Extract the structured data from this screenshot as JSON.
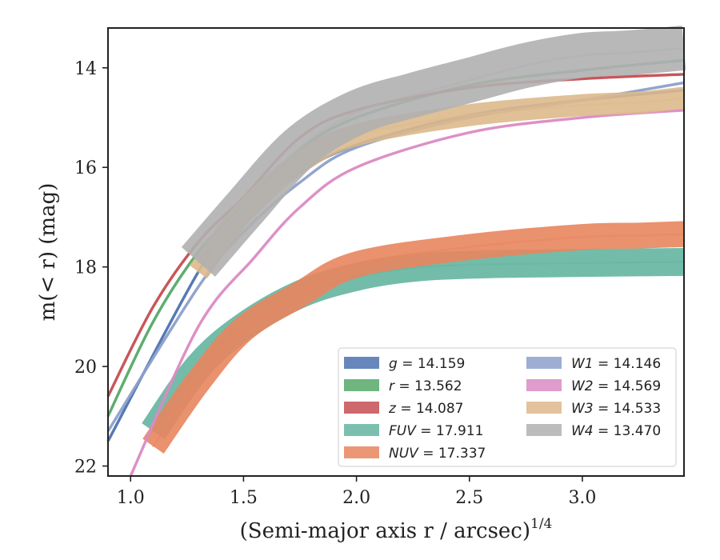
{
  "chart_data": {
    "type": "line",
    "title": "",
    "xlabel": "(Semi-major axis r / arcsec)",
    "xlabel_superscript": "1/4",
    "ylabel": "m(< r) (mag)",
    "xlim": [
      0.9,
      3.45
    ],
    "ylim": [
      22.2,
      13.2
    ],
    "y_inverted": true,
    "grid": false,
    "legend_placement": "lower-right",
    "xticks": [
      {
        "value": 1.0,
        "label": "1.0"
      },
      {
        "value": 1.5,
        "label": "1.5"
      },
      {
        "value": 2.0,
        "label": "2.0"
      },
      {
        "value": 2.5,
        "label": "2.5"
      },
      {
        "value": 3.0,
        "label": "3.0"
      }
    ],
    "yticks": [
      {
        "value": 14,
        "label": "14"
      },
      {
        "value": 16,
        "label": "16"
      },
      {
        "value": 18,
        "label": "18"
      },
      {
        "value": 20,
        "label": "20"
      },
      {
        "value": 22,
        "label": "22"
      }
    ],
    "series": [
      {
        "name": "g",
        "legend_value": "14.159",
        "color": "#4c72b0",
        "thin": true,
        "bandwidth": 0.07,
        "x": [
          0.9,
          1.3,
          1.5,
          1.75,
          2.0,
          2.5,
          3.0,
          3.45
        ],
        "y": [
          21.5,
          18.1,
          16.9,
          16.1,
          15.55,
          14.95,
          14.65,
          14.45
        ]
      },
      {
        "name": "r",
        "legend_value": "13.562",
        "color": "#55a868",
        "thin": true,
        "bandwidth": 0.07,
        "x": [
          0.9,
          1.1,
          1.3,
          1.5,
          1.75,
          2.0,
          2.5,
          3.0,
          3.45
        ],
        "y": [
          21.0,
          19.1,
          17.7,
          16.75,
          15.65,
          15.0,
          14.35,
          14.05,
          13.85
        ]
      },
      {
        "name": "z",
        "legend_value": "14.087",
        "color": "#c44e52",
        "thin": true,
        "bandwidth": 0.07,
        "x": [
          0.9,
          1.1,
          1.3,
          1.5,
          1.75,
          2.0,
          2.5,
          3.0,
          3.45
        ],
        "y": [
          20.6,
          18.8,
          17.5,
          16.6,
          15.4,
          14.85,
          14.4,
          14.22,
          14.13
        ]
      },
      {
        "name": "FUV",
        "legend_value": "17.911",
        "color": "#64b5a0",
        "thin": false,
        "bandwidth": 0.28,
        "x": [
          1.1,
          1.3,
          1.5,
          1.75,
          2.0,
          2.25,
          2.55,
          3.0,
          3.45
        ],
        "y": [
          21.3,
          20.0,
          19.2,
          18.55,
          18.2,
          18.02,
          17.95,
          17.92,
          17.9
        ]
      },
      {
        "name": "NUV",
        "legend_value": "17.337",
        "color": "#e8855e",
        "thin": false,
        "bandwidth": 0.26,
        "x": [
          1.1,
          1.3,
          1.5,
          1.75,
          2.0,
          2.5,
          3.0,
          3.25,
          3.45
        ],
        "y": [
          21.6,
          20.3,
          19.25,
          18.55,
          17.95,
          17.6,
          17.4,
          17.37,
          17.34
        ]
      },
      {
        "name": "W1",
        "legend_value": "14.146",
        "color": "#8da0cb",
        "thin": true,
        "bandwidth": 0.08,
        "x": [
          0.9,
          1.3,
          1.5,
          1.75,
          2.0,
          2.5,
          3.0,
          3.45
        ],
        "y": [
          21.3,
          18.4,
          17.3,
          16.3,
          15.6,
          15.0,
          14.65,
          14.3
        ]
      },
      {
        "name": "W2",
        "legend_value": "14.569",
        "color": "#da8bc3",
        "thin": true,
        "bandwidth": 0.08,
        "x": [
          1.0,
          1.3,
          1.55,
          1.75,
          2.0,
          2.5,
          3.0,
          3.45
        ],
        "y": [
          22.2,
          19.2,
          17.8,
          16.8,
          16.0,
          15.3,
          15.0,
          14.85
        ]
      },
      {
        "name": "W3",
        "legend_value": "14.533",
        "color": "#ddb98c",
        "thin": false,
        "bandwidth": 0.22,
        "x": [
          1.3,
          1.5,
          1.75,
          2.0,
          2.5,
          3.0,
          3.25,
          3.45
        ],
        "y": [
          18.1,
          16.9,
          15.9,
          15.35,
          14.95,
          14.75,
          14.7,
          14.6
        ]
      },
      {
        "name": "W4",
        "legend_value": "13.470",
        "color": "#b0b0b0",
        "thin": false,
        "bandwidth": 0.45,
        "x": [
          1.3,
          1.5,
          1.75,
          2.0,
          2.25,
          2.5,
          2.75,
          3.0,
          3.2,
          3.45
        ],
        "y": [
          17.9,
          16.85,
          15.6,
          14.9,
          14.55,
          14.25,
          13.95,
          13.75,
          13.7,
          13.6
        ]
      }
    ]
  }
}
